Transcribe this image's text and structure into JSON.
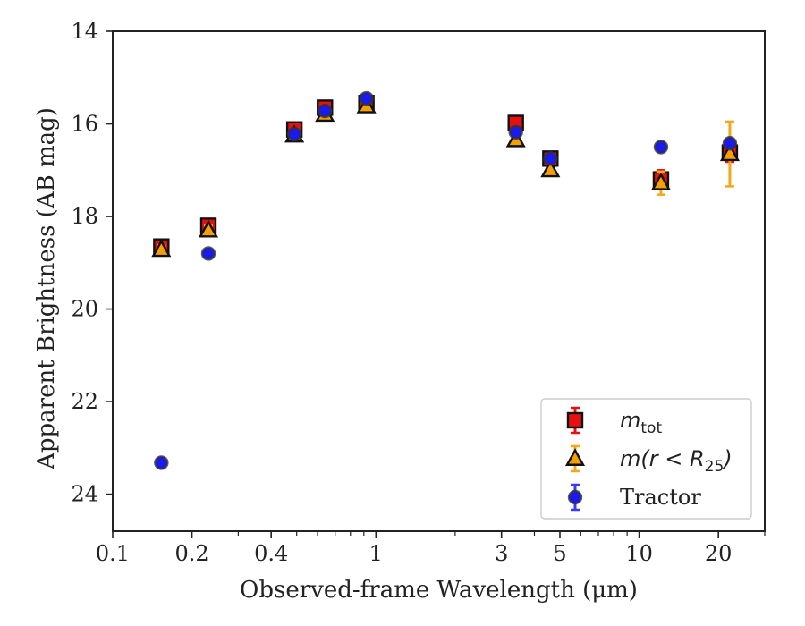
{
  "chart_data": {
    "type": "scatter",
    "title": "",
    "xlabel": "Observed-frame Wavelength (μm)",
    "ylabel": "Apparent Brightness (AB mag)",
    "xscale": "log",
    "xlim": [
      0.1,
      30
    ],
    "ylim": [
      24.8,
      14
    ],
    "y_inverted": true,
    "grid": false,
    "legend_position": "lower-right",
    "x_ticks": [
      {
        "value": 0.1,
        "label": "0.1"
      },
      {
        "value": 0.2,
        "label": "0.2"
      },
      {
        "value": 0.4,
        "label": "0.4"
      },
      {
        "value": 1,
        "label": "1"
      },
      {
        "value": 3,
        "label": "3"
      },
      {
        "value": 5,
        "label": "5"
      },
      {
        "value": 10,
        "label": "10"
      },
      {
        "value": 20,
        "label": "20"
      }
    ],
    "x_minor_ticks": [
      0.3,
      0.5,
      0.6,
      0.7,
      0.8,
      0.9,
      2,
      4,
      6,
      7,
      8,
      9,
      30
    ],
    "y_ticks": [
      {
        "value": 14,
        "label": "14"
      },
      {
        "value": 16,
        "label": "16"
      },
      {
        "value": 18,
        "label": "18"
      },
      {
        "value": 20,
        "label": "20"
      },
      {
        "value": 22,
        "label": "22"
      },
      {
        "value": 24,
        "label": "24"
      }
    ],
    "series": [
      {
        "name": "m_tot",
        "legend_main": "m",
        "legend_sub": "tot",
        "marker": "square",
        "color": "#e8100f",
        "errorbar_color": "#e8100f",
        "points": [
          {
            "x": 0.153,
            "y": 18.65,
            "err": 0.15
          },
          {
            "x": 0.231,
            "y": 18.2,
            "err": 0.1
          },
          {
            "x": 0.49,
            "y": 16.12,
            "err": 0.05
          },
          {
            "x": 0.64,
            "y": 15.65,
            "err": 0.05
          },
          {
            "x": 0.92,
            "y": 15.55,
            "err": 0.05
          },
          {
            "x": 3.4,
            "y": 15.98,
            "err": 0.05
          },
          {
            "x": 4.6,
            "y": 16.75,
            "err": 0.05
          },
          {
            "x": 12.1,
            "y": 17.2,
            "err": 0.2
          },
          {
            "x": 22.1,
            "y": 16.62,
            "err": 0.2
          }
        ]
      },
      {
        "name": "m(r < R25)",
        "legend_main": "m(r < R",
        "legend_sub": "25",
        "legend_tail": ")",
        "marker": "triangle",
        "color": "#f5a000",
        "errorbar_color": "#f7a61a",
        "points": [
          {
            "x": 0.153,
            "y": 18.72,
            "err": 0.1
          },
          {
            "x": 0.231,
            "y": 18.3,
            "err": 0.1
          },
          {
            "x": 0.49,
            "y": 16.25,
            "err": 0.05
          },
          {
            "x": 0.64,
            "y": 15.8,
            "err": 0.05
          },
          {
            "x": 0.92,
            "y": 15.62,
            "err": 0.05
          },
          {
            "x": 3.4,
            "y": 16.35,
            "err": 0.05
          },
          {
            "x": 4.6,
            "y": 17.0,
            "err": 0.05
          },
          {
            "x": 12.1,
            "y": 17.28,
            "err": 0.25
          },
          {
            "x": 22.1,
            "y": 16.65,
            "err": 0.7
          }
        ]
      },
      {
        "name": "Tractor",
        "legend_main": "Tractor",
        "marker": "circle",
        "color": "#1a1aee",
        "errorbar_color": "#3a3af5",
        "points": [
          {
            "x": 0.153,
            "y": 23.32,
            "err": 0.05
          },
          {
            "x": 0.231,
            "y": 18.8,
            "err": 0.05
          },
          {
            "x": 0.49,
            "y": 16.22,
            "err": 0.05
          },
          {
            "x": 0.64,
            "y": 15.72,
            "err": 0.05
          },
          {
            "x": 0.92,
            "y": 15.45,
            "err": 0.05
          },
          {
            "x": 3.4,
            "y": 16.18,
            "err": 0.05
          },
          {
            "x": 4.6,
            "y": 16.75,
            "err": 0.05
          },
          {
            "x": 12.1,
            "y": 16.5,
            "err": 0.05
          },
          {
            "x": 22.1,
            "y": 16.42,
            "err": 0.05
          }
        ]
      }
    ]
  }
}
